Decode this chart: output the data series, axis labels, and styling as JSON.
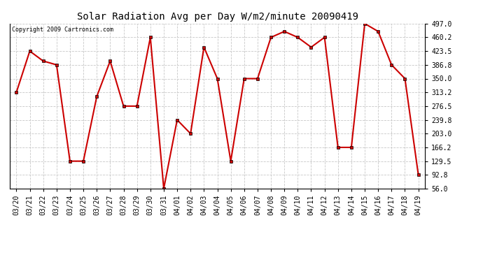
{
  "title": "Solar Radiation Avg per Day W/m2/minute 20090419",
  "copyright": "Copyright 2009 Cartronics.com",
  "labels": [
    "03/20",
    "03/21",
    "03/22",
    "03/23",
    "03/24",
    "03/25",
    "03/26",
    "03/27",
    "03/28",
    "03/29",
    "03/30",
    "03/31",
    "04/01",
    "04/02",
    "04/03",
    "04/04",
    "04/05",
    "04/06",
    "04/07",
    "04/08",
    "04/09",
    "04/10",
    "04/11",
    "04/12",
    "04/13",
    "04/14",
    "04/15",
    "04/16",
    "04/17",
    "04/18",
    "04/19"
  ],
  "values": [
    313.2,
    423.5,
    397.0,
    386.8,
    129.5,
    129.5,
    302.0,
    397.0,
    276.5,
    276.5,
    460.2,
    56.0,
    239.8,
    203.0,
    434.0,
    350.0,
    129.5,
    350.0,
    350.0,
    460.2,
    476.0,
    460.2,
    434.0,
    460.2,
    166.2,
    166.2,
    497.0,
    476.0,
    386.8,
    350.0,
    92.8
  ],
  "line_color": "#cc0000",
  "marker_color": "#cc0000",
  "bg_color": "#ffffff",
  "grid_color": "#c8c8c8",
  "yticks": [
    56.0,
    92.8,
    129.5,
    166.2,
    203.0,
    239.8,
    276.5,
    313.2,
    350.0,
    386.8,
    423.5,
    460.2,
    497.0
  ],
  "ymin": 56.0,
  "ymax": 497.0,
  "title_fontsize": 10,
  "tick_fontsize": 7
}
